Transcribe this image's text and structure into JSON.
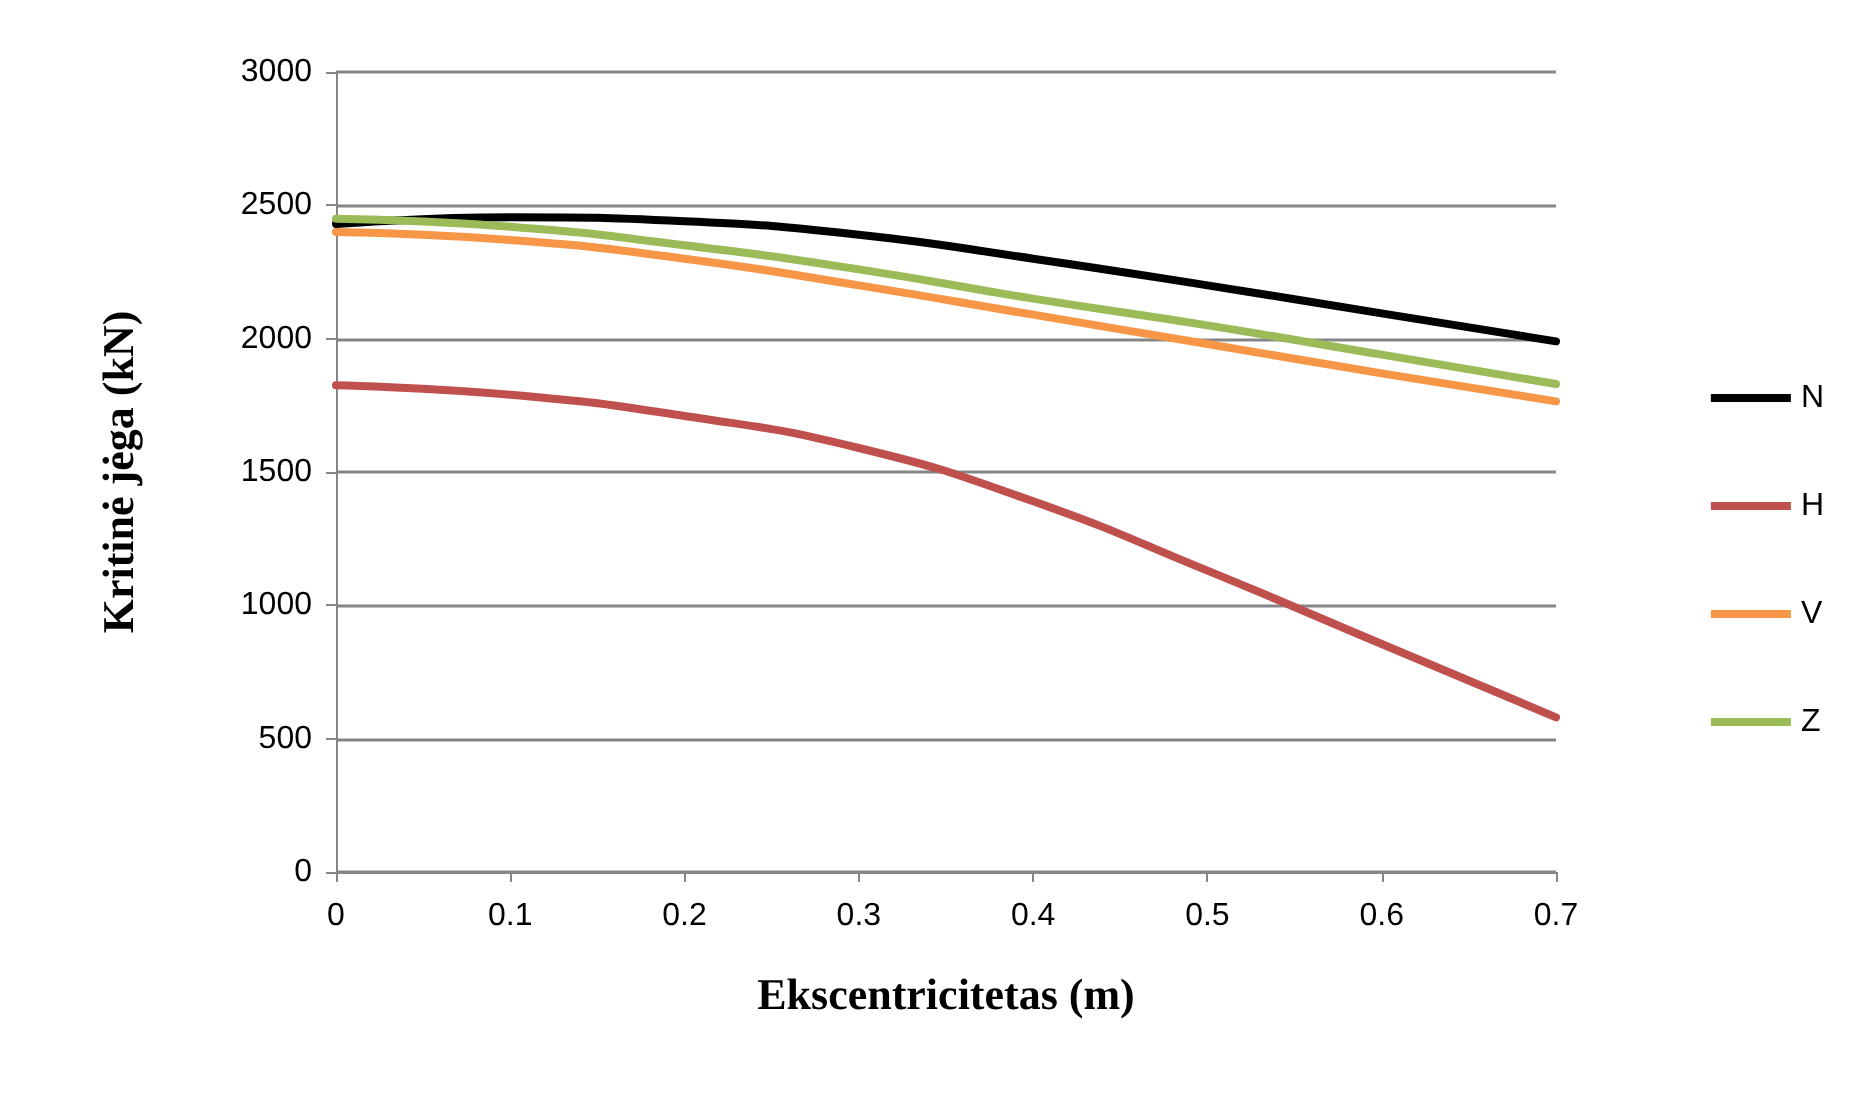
{
  "chart_data": {
    "type": "line",
    "xlabel": "Ekscentricitetas (m)",
    "ylabel": "Kritinė jėga (kN)",
    "x": [
      0,
      0.1,
      0.2,
      0.3,
      0.4,
      0.5,
      0.6,
      0.7
    ],
    "series": [
      {
        "name": "N",
        "color": "#000000",
        "values": [
          2430,
          2455,
          2440,
          2390,
          2300,
          2200,
          2095,
          1990
        ]
      },
      {
        "name": "H",
        "color": "#c0504d",
        "values": [
          1825,
          1790,
          1710,
          1590,
          1390,
          1130,
          855,
          580
        ]
      },
      {
        "name": "V",
        "color": "#f79646",
        "values": [
          2400,
          2370,
          2300,
          2200,
          2090,
          1980,
          1870,
          1765
        ]
      },
      {
        "name": "Z",
        "color": "#9bbb59",
        "values": [
          2450,
          2420,
          2350,
          2260,
          2150,
          2050,
          1940,
          1830
        ]
      }
    ],
    "xlim": [
      0,
      0.7
    ],
    "xticks": [
      0,
      0.1,
      0.2,
      0.3,
      0.4,
      0.5,
      0.6,
      0.7
    ],
    "ylim": [
      0,
      3000
    ],
    "yticks": [
      0,
      500,
      1000,
      1500,
      2000,
      2500,
      3000
    ],
    "grid": "y",
    "legend": "right",
    "marker": "none",
    "line_style": "solid"
  }
}
